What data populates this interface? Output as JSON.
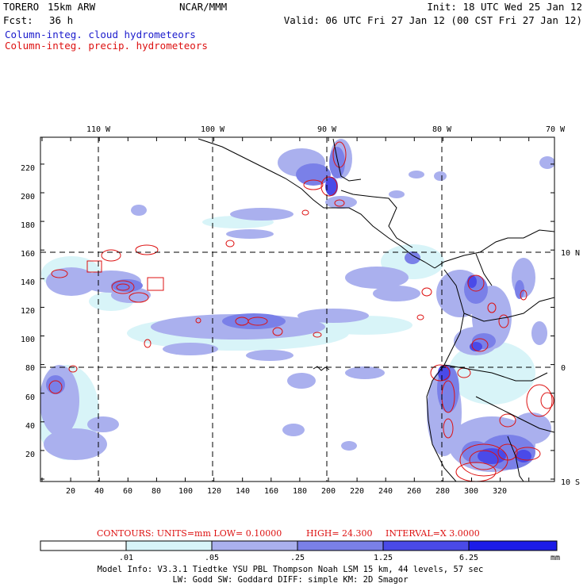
{
  "header": {
    "model_name": "TORERO",
    "resolution": "15km ARW",
    "agency": "NCAR/MMM",
    "init": "Init: 18 UTC Wed 25 Jan 12",
    "fcst_label": "Fcst:",
    "fcst_value": "36 h",
    "valid": "Valid: 06 UTC Fri 27 Jan 12 (00 CST Fri 27 Jan 12)"
  },
  "fields": {
    "cloud": "Column-integ. cloud hydrometeors",
    "precip": "Column-integ. precip. hydrometeors"
  },
  "colors": {
    "cloud_shade_lightest": "#d8f4f8",
    "cloud_shade_light": "#aab0ee",
    "cloud_shade_mid": "#7a80e8",
    "cloud_shade_dark": "#4a4ae8",
    "cloud_shade_darkest": "#1c1ce8",
    "precip_contour": "#dd1111"
  },
  "map": {
    "top_lon_labels": [
      "110 W",
      "100 W",
      "90 W",
      "80 W",
      "70 W"
    ],
    "right_lat_labels": [
      "10 N",
      "0",
      "10 S"
    ],
    "x_ticks": [
      "20",
      "40",
      "60",
      "80",
      "100",
      "120",
      "140",
      "160",
      "180",
      "200",
      "220",
      "240",
      "260",
      "280",
      "300",
      "320"
    ],
    "y_ticks": [
      "20",
      "40",
      "60",
      "80",
      "100",
      "120",
      "140",
      "160",
      "180",
      "200",
      "220"
    ]
  },
  "contour_info": {
    "label": "CONTOURS:  UNITS=mm  LOW= 0.10000",
    "high": "HIGH=  24.300",
    "interval": "INTERVAL=X  3.0000"
  },
  "colorbar": {
    "labels": [
      ".01",
      ".05",
      ".25",
      "1.25",
      "6.25"
    ],
    "units": "mm"
  },
  "footer": {
    "line1": "Model Info: V3.3.1    Tiedtke YSU PBL  Thompson     Noah LSM  15 km,   44 levels,    57 sec",
    "line2": "LW: Godd SW: Goddard DIFF: simple KM: 2D Smagor"
  }
}
